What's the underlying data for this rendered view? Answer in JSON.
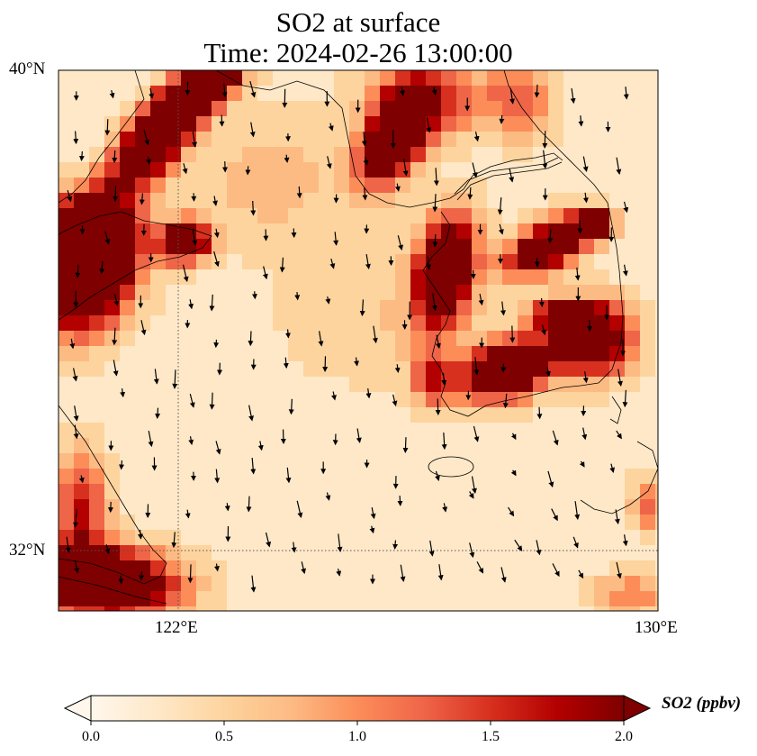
{
  "title": {
    "line1": "SO2 at surface",
    "line2": "Time: 2024-02-26 13:00:00"
  },
  "map": {
    "lat_ticks": [
      "40°N",
      "32°N"
    ],
    "lon_ticks": [
      "122°E",
      "130°E"
    ],
    "extent": {
      "lon": [
        120,
        130
      ],
      "lat": [
        31,
        40
      ]
    },
    "gridlines": {
      "lon": 122,
      "lat": 32,
      "style": "dotted"
    }
  },
  "colorbar": {
    "label": "SO2 (ppbv)",
    "ticks": [
      "0.0",
      "0.5",
      "1.0",
      "1.5",
      "2.0"
    ],
    "range": [
      0,
      2
    ],
    "extend": "both",
    "colormap": "OrRd",
    "colors": [
      "#fff7ec",
      "#fee8c8",
      "#fdd49e",
      "#fdbb84",
      "#fc8d59",
      "#ef6548",
      "#d7301f",
      "#b30000",
      "#7f0000"
    ]
  }
}
